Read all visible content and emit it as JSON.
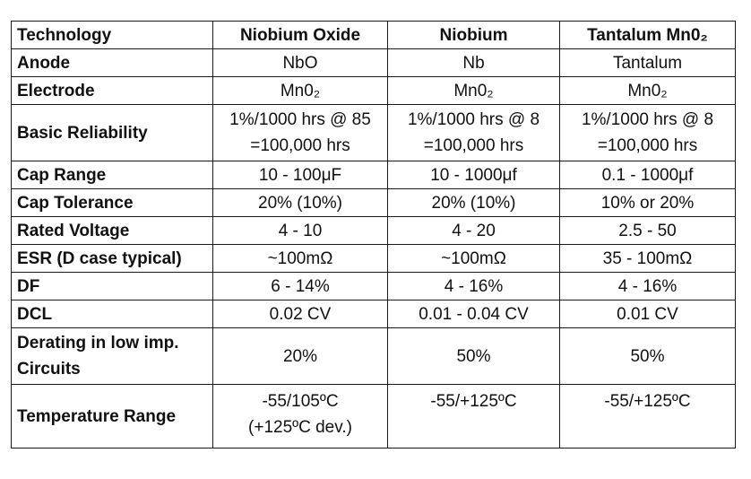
{
  "table": {
    "headers": [
      "Technology",
      "Niobium Oxide",
      "Niobium",
      "Tantalum Mn0₂"
    ],
    "rows": [
      {
        "label": [
          "Anode"
        ],
        "values": [
          [
            "NbO"
          ],
          [
            "Nb"
          ],
          [
            "Tantalum"
          ]
        ]
      },
      {
        "label": [
          "Electrode"
        ],
        "values": [
          [
            "Mn0₂"
          ],
          [
            "Mn0₂"
          ],
          [
            "Mn0₂"
          ]
        ]
      },
      {
        "label": [
          "Basic Reliability"
        ],
        "values": [
          [
            "1%/1000 hrs @ 85",
            "=100,000 hrs"
          ],
          [
            "1%/1000 hrs @ 8",
            "=100,000 hrs"
          ],
          [
            "1%/1000 hrs @ 8",
            "=100,000 hrs"
          ]
        ]
      },
      {
        "label": [
          "Cap Range"
        ],
        "values": [
          [
            "10 - 100μF"
          ],
          [
            "10 - 1000μf"
          ],
          [
            "0.1 - 1000μf"
          ]
        ]
      },
      {
        "label": [
          "Cap Tolerance"
        ],
        "values": [
          [
            "20% (10%)"
          ],
          [
            "20% (10%)"
          ],
          [
            "10% or 20%"
          ]
        ]
      },
      {
        "label": [
          "Rated Voltage"
        ],
        "values": [
          [
            "4 - 10"
          ],
          [
            "4 - 20"
          ],
          [
            "2.5 - 50"
          ]
        ]
      },
      {
        "label": [
          "ESR (D case typical)"
        ],
        "values": [
          [
            "~100mΩ"
          ],
          [
            "~100mΩ"
          ],
          [
            "35 - 100mΩ"
          ]
        ]
      },
      {
        "label": [
          "DF"
        ],
        "values": [
          [
            "6 - 14%"
          ],
          [
            "4 - 16%"
          ],
          [
            "4 - 16%"
          ]
        ]
      },
      {
        "label": [
          "DCL"
        ],
        "values": [
          [
            "0.02 CV"
          ],
          [
            "0.01 - 0.04 CV"
          ],
          [
            "0.01 CV"
          ]
        ]
      },
      {
        "label": [
          "Derating in low imp.",
          "Circuits"
        ],
        "values": [
          [
            "20%"
          ],
          [
            "50%"
          ],
          [
            "50%"
          ]
        ]
      },
      {
        "label": [
          "Temperature Range"
        ],
        "values": [
          [
            "-55/105ºC",
            "(+125ºC dev.)"
          ],
          [
            "-55/+125ºC"
          ],
          [
            "-55/+125ºC"
          ]
        ]
      }
    ]
  }
}
